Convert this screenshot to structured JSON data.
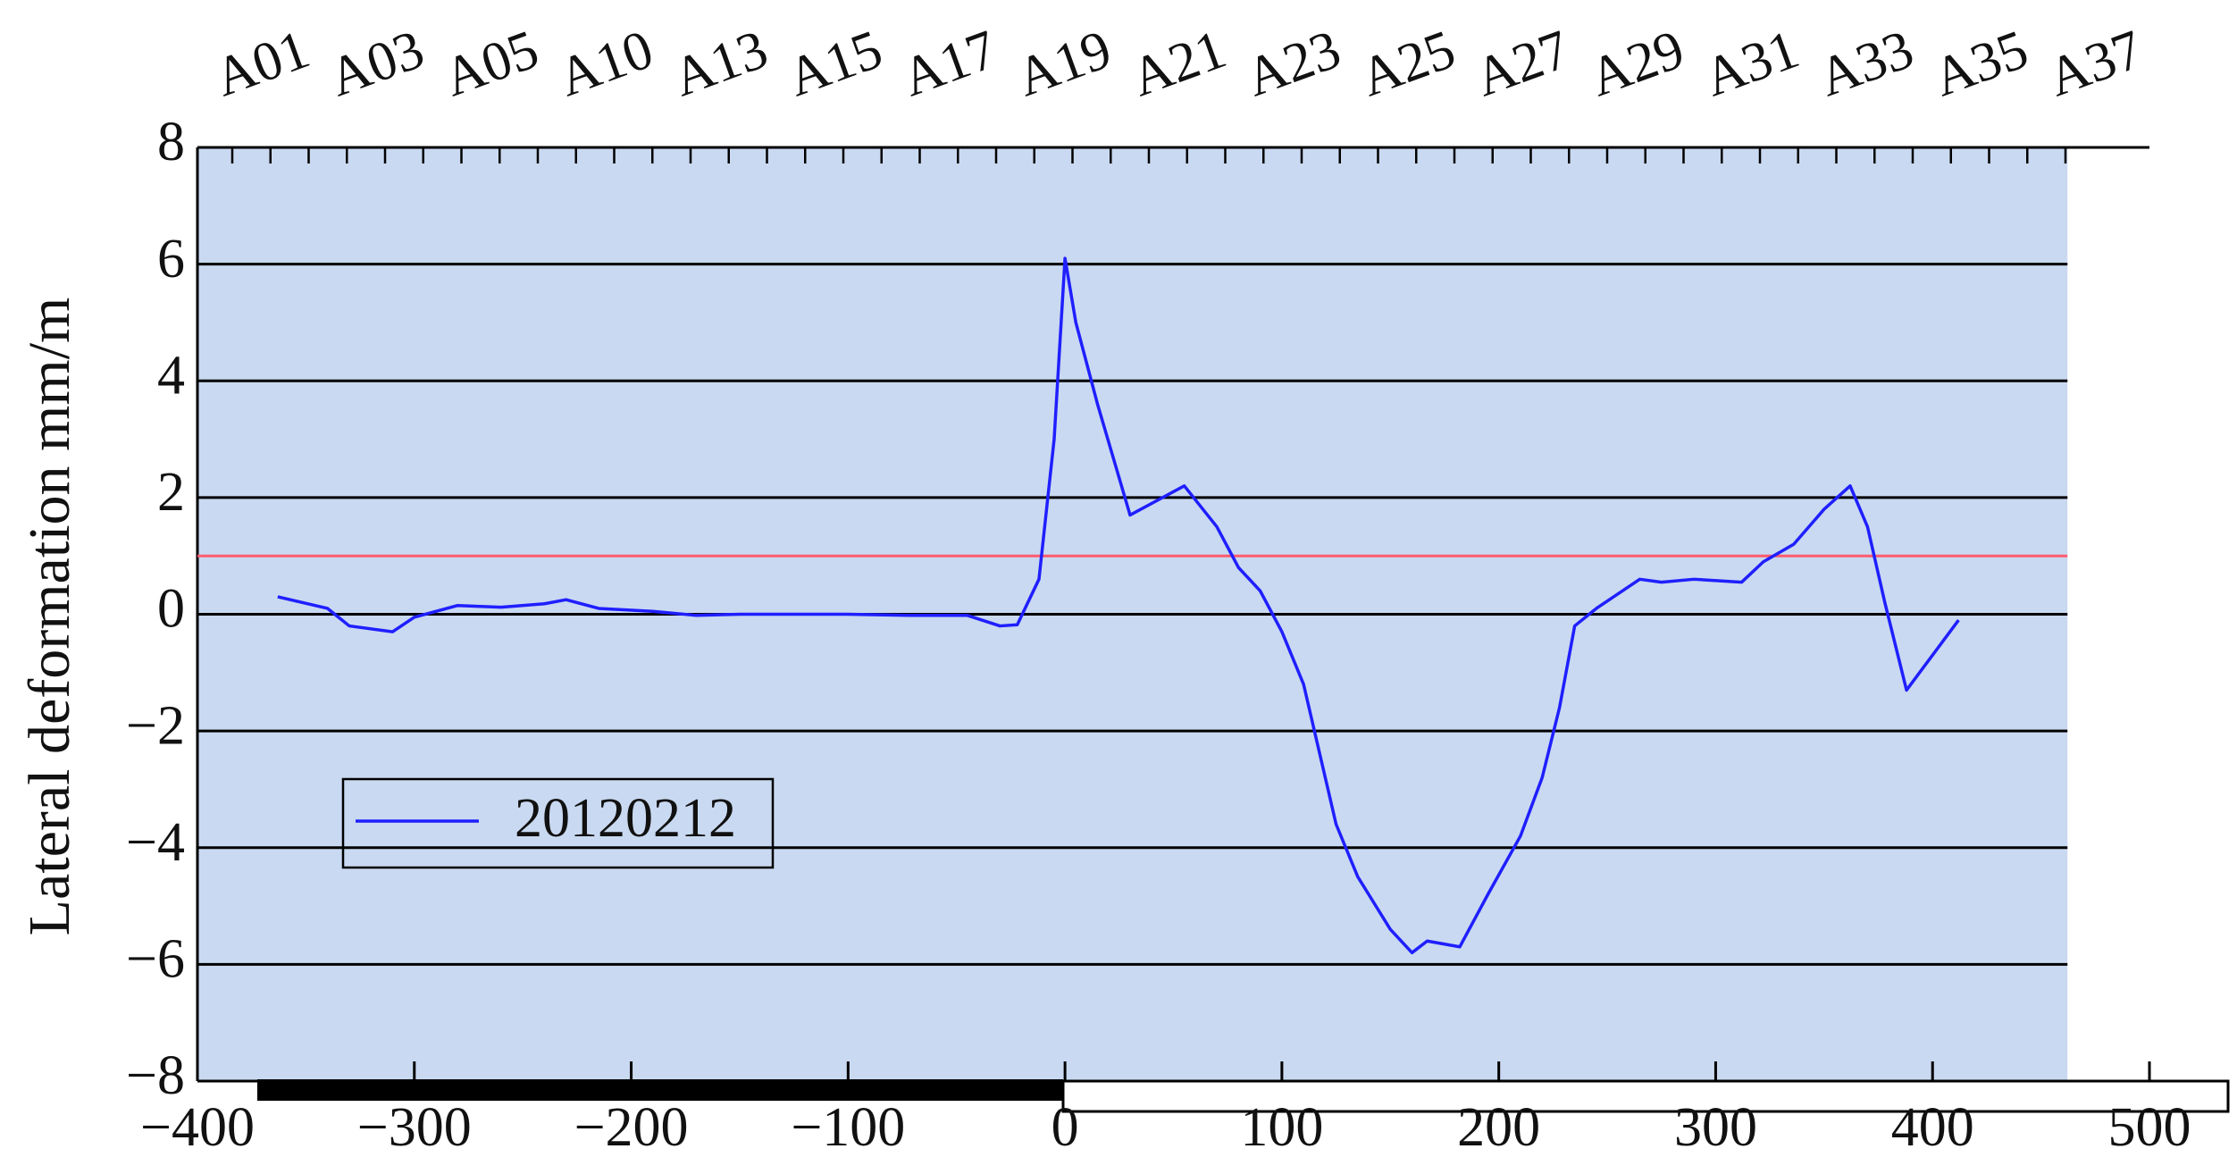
{
  "chart_data": {
    "type": "line",
    "y_label": "Lateral deformation mm/m",
    "top_categories": [
      "A01",
      "A03",
      "A05",
      "A10",
      "A13",
      "A15",
      "A17",
      "A19",
      "A21",
      "A23",
      "A25",
      "A27",
      "A29",
      "A31",
      "A33",
      "A35",
      "A37"
    ],
    "series": [
      {
        "name": "20120212",
        "color": "#1f1fff",
        "x": [
          -363,
          -340,
          -330,
          -310,
          -300,
          -280,
          -260,
          -240,
          -230,
          -215,
          -190,
          -170,
          -150,
          -100,
          -70,
          -45,
          -30,
          -22,
          -12,
          -5,
          0,
          5,
          15,
          30,
          45,
          55,
          70,
          80,
          90,
          100,
          110,
          115,
          125,
          135,
          150,
          160,
          167,
          182,
          195,
          210,
          220,
          228,
          235,
          245,
          265,
          275,
          290,
          312,
          322,
          336,
          350,
          362,
          370,
          378,
          388,
          412
        ],
        "values": [
          0.3,
          0.1,
          -0.2,
          -0.3,
          -0.05,
          0.15,
          0.12,
          0.18,
          0.25,
          0.1,
          0.05,
          -0.02,
          0,
          0,
          -0.02,
          -0.02,
          -0.2,
          -0.18,
          0.6,
          3,
          6.1,
          5,
          3.6,
          1.7,
          2,
          2.2,
          1.5,
          0.8,
          0.4,
          -0.3,
          -1.2,
          -2,
          -3.6,
          -4.5,
          -5.4,
          -5.8,
          -5.6,
          -5.7,
          -4.8,
          -3.8,
          -2.8,
          -1.6,
          -0.2,
          0.1,
          0.6,
          0.55,
          0.6,
          0.55,
          0.9,
          1.2,
          1.8,
          2.2,
          1.5,
          0.2,
          -1.3,
          -0.1
        ]
      }
    ],
    "reference_line": {
      "value": 1,
      "color": "#ff5a6e"
    },
    "xlim": [
      -400,
      500
    ],
    "xticks": [
      {
        "value": -400,
        "label": "−400"
      },
      {
        "value": -300,
        "label": "−300"
      },
      {
        "value": -200,
        "label": "−200"
      },
      {
        "value": -100,
        "label": "−100"
      },
      0,
      100,
      200,
      300,
      400,
      500
    ],
    "ylim": [
      -8,
      8
    ],
    "yticks": [
      {
        "value": -8,
        "label": "−8"
      },
      {
        "value": -6,
        "label": "−6"
      },
      {
        "value": -4,
        "label": "−4"
      },
      {
        "value": -2,
        "label": "−2"
      },
      0,
      2,
      4,
      6,
      8
    ],
    "grid": true,
    "background": "#c9d9f1",
    "legend": "lower left"
  }
}
